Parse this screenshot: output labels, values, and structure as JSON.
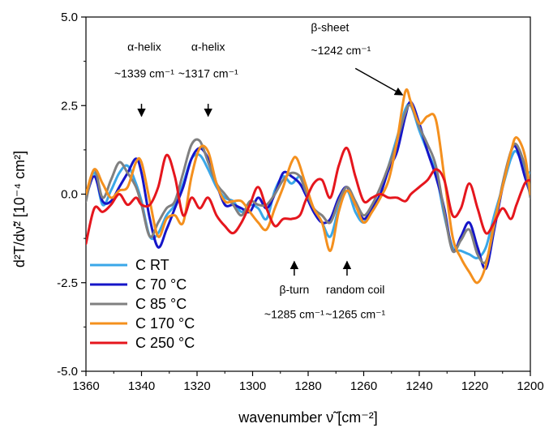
{
  "chart_data": {
    "type": "line",
    "xlabel": "wavenumber ν̃ [cm⁻²]",
    "ylabel": "d²T/dν̃² [10⁻⁴ cm²]",
    "xlim": [
      1360,
      1200
    ],
    "ylim": [
      -5.0,
      5.0
    ],
    "x_reversed": true,
    "x_ticks": [
      1360,
      1340,
      1320,
      1300,
      1280,
      1260,
      1240,
      1220,
      1200
    ],
    "y_ticks": [
      -5.0,
      -2.5,
      0.0,
      2.5,
      5.0
    ],
    "y_tick_labels": [
      "-5.0",
      "-2.5",
      "0.0",
      "2.5",
      "5.0"
    ],
    "grid": false,
    "legend_placement": "bottom-left",
    "series": [
      {
        "name": "C RT",
        "color": "#3aa7e8",
        "points": [
          [
            1360,
            -0.1
          ],
          [
            1357,
            0.6
          ],
          [
            1354,
            -0.3
          ],
          [
            1351,
            0.1
          ],
          [
            1348,
            0.6
          ],
          [
            1345,
            0.8
          ],
          [
            1342,
            0.3
          ],
          [
            1340,
            -0.2
          ],
          [
            1337,
            -1.2
          ],
          [
            1334,
            -1.1
          ],
          [
            1331,
            -0.6
          ],
          [
            1328,
            -0.3
          ],
          [
            1325,
            0.3
          ],
          [
            1322,
            1.0
          ],
          [
            1319,
            1.1
          ],
          [
            1316,
            0.7
          ],
          [
            1313,
            0.2
          ],
          [
            1310,
            -0.1
          ],
          [
            1307,
            -0.2
          ],
          [
            1304,
            -0.5
          ],
          [
            1301,
            -0.3
          ],
          [
            1298,
            -0.4
          ],
          [
            1295,
            -0.7
          ],
          [
            1292,
            0.1
          ],
          [
            1289,
            0.5
          ],
          [
            1286,
            0.3
          ],
          [
            1283,
            0.5
          ],
          [
            1281,
            0.2
          ],
          [
            1278,
            -0.4
          ],
          [
            1275,
            -0.8
          ],
          [
            1272,
            -1.2
          ],
          [
            1269,
            -0.4
          ],
          [
            1266,
            0.1
          ],
          [
            1263,
            -0.5
          ],
          [
            1260,
            -0.8
          ],
          [
            1257,
            -0.4
          ],
          [
            1254,
            0.0
          ],
          [
            1251,
            0.8
          ],
          [
            1248,
            1.6
          ],
          [
            1245,
            2.4
          ],
          [
            1243,
            2.5
          ],
          [
            1240,
            1.8
          ],
          [
            1237,
            1.2
          ],
          [
            1234,
            0.6
          ],
          [
            1231,
            -0.6
          ],
          [
            1228,
            -1.5
          ],
          [
            1225,
            -1.6
          ],
          [
            1222,
            -1.7
          ],
          [
            1219,
            -1.8
          ],
          [
            1216,
            -1.5
          ],
          [
            1213,
            -0.6
          ],
          [
            1210,
            0.2
          ],
          [
            1207,
            1.0
          ],
          [
            1205,
            1.2
          ],
          [
            1202,
            0.7
          ],
          [
            1200,
            0.6
          ]
        ]
      },
      {
        "name": "C 70 °C",
        "color": "#1515c8",
        "points": [
          [
            1360,
            -0.1
          ],
          [
            1357,
            0.5
          ],
          [
            1354,
            -0.2
          ],
          [
            1351,
            -0.2
          ],
          [
            1348,
            0.2
          ],
          [
            1345,
            0.6
          ],
          [
            1342,
            1.0
          ],
          [
            1340,
            0.6
          ],
          [
            1337,
            -0.7
          ],
          [
            1334,
            -1.5
          ],
          [
            1331,
            -1.0
          ],
          [
            1328,
            -0.4
          ],
          [
            1325,
            0.2
          ],
          [
            1322,
            1.0
          ],
          [
            1319,
            1.3
          ],
          [
            1316,
            1.0
          ],
          [
            1313,
            0.3
          ],
          [
            1310,
            -0.3
          ],
          [
            1307,
            -0.3
          ],
          [
            1304,
            -0.4
          ],
          [
            1301,
            -0.5
          ],
          [
            1298,
            -0.1
          ],
          [
            1295,
            -0.4
          ],
          [
            1292,
            0.0
          ],
          [
            1289,
            0.6
          ],
          [
            1286,
            0.5
          ],
          [
            1283,
            0.3
          ],
          [
            1281,
            0.0
          ],
          [
            1278,
            -0.5
          ],
          [
            1275,
            -0.8
          ],
          [
            1272,
            -0.7
          ],
          [
            1269,
            -0.1
          ],
          [
            1266,
            0.2
          ],
          [
            1263,
            -0.3
          ],
          [
            1260,
            -0.7
          ],
          [
            1257,
            -0.4
          ],
          [
            1254,
            0.0
          ],
          [
            1251,
            0.7
          ],
          [
            1248,
            1.2
          ],
          [
            1245,
            2.2
          ],
          [
            1243,
            2.6
          ],
          [
            1240,
            2.0
          ],
          [
            1237,
            1.2
          ],
          [
            1234,
            0.5
          ],
          [
            1231,
            -0.4
          ],
          [
            1228,
            -1.6
          ],
          [
            1225,
            -1.2
          ],
          [
            1222,
            -0.8
          ],
          [
            1219,
            -1.5
          ],
          [
            1216,
            -2.1
          ],
          [
            1213,
            -1.0
          ],
          [
            1210,
            0.2
          ],
          [
            1207,
            1.2
          ],
          [
            1205,
            1.3
          ],
          [
            1202,
            0.5
          ],
          [
            1200,
            0.0
          ]
        ]
      },
      {
        "name": "C 85 °C",
        "color": "#808080",
        "points": [
          [
            1360,
            -0.2
          ],
          [
            1357,
            0.7
          ],
          [
            1354,
            -0.1
          ],
          [
            1351,
            0.4
          ],
          [
            1348,
            0.9
          ],
          [
            1345,
            0.6
          ],
          [
            1342,
            0.2
          ],
          [
            1340,
            -0.3
          ],
          [
            1337,
            -1.2
          ],
          [
            1334,
            -0.8
          ],
          [
            1331,
            -0.4
          ],
          [
            1328,
            -0.2
          ],
          [
            1325,
            0.6
          ],
          [
            1322,
            1.4
          ],
          [
            1319,
            1.5
          ],
          [
            1316,
            0.9
          ],
          [
            1313,
            0.3
          ],
          [
            1310,
            0.0
          ],
          [
            1307,
            -0.3
          ],
          [
            1304,
            -0.6
          ],
          [
            1301,
            -0.2
          ],
          [
            1298,
            -0.3
          ],
          [
            1295,
            -0.3
          ],
          [
            1292,
            0.0
          ],
          [
            1289,
            0.4
          ],
          [
            1286,
            0.6
          ],
          [
            1283,
            0.5
          ],
          [
            1281,
            0.1
          ],
          [
            1278,
            -0.4
          ],
          [
            1275,
            -0.6
          ],
          [
            1272,
            -0.8
          ],
          [
            1269,
            -0.2
          ],
          [
            1266,
            0.2
          ],
          [
            1263,
            -0.2
          ],
          [
            1260,
            -0.6
          ],
          [
            1257,
            -0.3
          ],
          [
            1254,
            0.2
          ],
          [
            1251,
            0.8
          ],
          [
            1248,
            1.5
          ],
          [
            1245,
            2.3
          ],
          [
            1243,
            2.5
          ],
          [
            1240,
            1.9
          ],
          [
            1237,
            1.4
          ],
          [
            1234,
            0.8
          ],
          [
            1231,
            -0.5
          ],
          [
            1228,
            -1.6
          ],
          [
            1225,
            -1.3
          ],
          [
            1222,
            -1.0
          ],
          [
            1219,
            -1.7
          ],
          [
            1216,
            -1.9
          ],
          [
            1213,
            -0.9
          ],
          [
            1210,
            0.3
          ],
          [
            1207,
            1.2
          ],
          [
            1205,
            1.4
          ],
          [
            1202,
            0.8
          ],
          [
            1200,
            -0.1
          ]
        ]
      },
      {
        "name": "C 170 °C",
        "color": "#f4901e",
        "points": [
          [
            1360,
            0.0
          ],
          [
            1357,
            0.7
          ],
          [
            1354,
            0.3
          ],
          [
            1351,
            -0.1
          ],
          [
            1348,
            0.1
          ],
          [
            1345,
            0.2
          ],
          [
            1342,
            0.9
          ],
          [
            1340,
            0.9
          ],
          [
            1337,
            -0.2
          ],
          [
            1334,
            -1.2
          ],
          [
            1331,
            -0.7
          ],
          [
            1328,
            -0.6
          ],
          [
            1325,
            -0.8
          ],
          [
            1322,
            0.5
          ],
          [
            1319,
            1.3
          ],
          [
            1316,
            1.2
          ],
          [
            1313,
            0.3
          ],
          [
            1310,
            -0.2
          ],
          [
            1307,
            -0.2
          ],
          [
            1304,
            -0.2
          ],
          [
            1301,
            -0.5
          ],
          [
            1298,
            -0.8
          ],
          [
            1295,
            -1.0
          ],
          [
            1292,
            -0.4
          ],
          [
            1289,
            0.2
          ],
          [
            1286,
            0.9
          ],
          [
            1284,
            1.0
          ],
          [
            1281,
            0.3
          ],
          [
            1278,
            -0.4
          ],
          [
            1275,
            -0.8
          ],
          [
            1272,
            -1.6
          ],
          [
            1269,
            -0.5
          ],
          [
            1266,
            0.1
          ],
          [
            1263,
            -0.3
          ],
          [
            1260,
            -0.8
          ],
          [
            1257,
            -0.5
          ],
          [
            1254,
            -0.1
          ],
          [
            1251,
            0.4
          ],
          [
            1248,
            1.5
          ],
          [
            1245,
            2.9
          ],
          [
            1243,
            2.6
          ],
          [
            1240,
            2.0
          ],
          [
            1237,
            2.2
          ],
          [
            1234,
            2.1
          ],
          [
            1231,
            0.5
          ],
          [
            1228,
            -1.2
          ],
          [
            1225,
            -1.8
          ],
          [
            1222,
            -2.2
          ],
          [
            1219,
            -2.5
          ],
          [
            1216,
            -2.0
          ],
          [
            1213,
            -0.8
          ],
          [
            1210,
            0.2
          ],
          [
            1207,
            1.2
          ],
          [
            1205,
            1.6
          ],
          [
            1202,
            1.1
          ],
          [
            1200,
            0.0
          ]
        ]
      },
      {
        "name": "C 250 °C",
        "color": "#e5161d",
        "points": [
          [
            1360,
            -1.4
          ],
          [
            1357,
            -0.4
          ],
          [
            1354,
            -0.5
          ],
          [
            1351,
            -0.3
          ],
          [
            1348,
            0.0
          ],
          [
            1345,
            -0.3
          ],
          [
            1342,
            -0.1
          ],
          [
            1340,
            -0.3
          ],
          [
            1337,
            -0.3
          ],
          [
            1334,
            0.2
          ],
          [
            1331,
            1.1
          ],
          [
            1328,
            0.5
          ],
          [
            1325,
            -0.6
          ],
          [
            1322,
            -0.1
          ],
          [
            1319,
            -0.4
          ],
          [
            1316,
            -0.1
          ],
          [
            1313,
            -0.6
          ],
          [
            1310,
            -0.9
          ],
          [
            1307,
            -1.1
          ],
          [
            1304,
            -0.8
          ],
          [
            1301,
            -0.3
          ],
          [
            1298,
            0.2
          ],
          [
            1295,
            -0.4
          ],
          [
            1292,
            -0.9
          ],
          [
            1289,
            -0.7
          ],
          [
            1286,
            -0.7
          ],
          [
            1283,
            -0.6
          ],
          [
            1281,
            -0.2
          ],
          [
            1278,
            0.3
          ],
          [
            1275,
            0.4
          ],
          [
            1272,
            -0.1
          ],
          [
            1269,
            0.8
          ],
          [
            1266,
            1.3
          ],
          [
            1263,
            0.5
          ],
          [
            1260,
            -0.2
          ],
          [
            1257,
            -0.1
          ],
          [
            1254,
            0.0
          ],
          [
            1251,
            -0.1
          ],
          [
            1248,
            -0.1
          ],
          [
            1245,
            -0.2
          ],
          [
            1243,
            0.0
          ],
          [
            1240,
            0.2
          ],
          [
            1237,
            0.4
          ],
          [
            1234,
            0.7
          ],
          [
            1231,
            0.4
          ],
          [
            1228,
            -0.6
          ],
          [
            1225,
            -0.4
          ],
          [
            1222,
            0.3
          ],
          [
            1219,
            -0.4
          ],
          [
            1216,
            -1.1
          ],
          [
            1213,
            -0.8
          ],
          [
            1210,
            -0.4
          ],
          [
            1207,
            -0.7
          ],
          [
            1205,
            -0.3
          ],
          [
            1202,
            0.3
          ],
          [
            1200,
            0.4
          ]
        ]
      }
    ],
    "annotations": [
      {
        "lines": [
          "α-helix",
          "~1339 cm⁻¹"
        ],
        "arrow_x": 1340,
        "arrow_from_y": 2.55,
        "arrow_to_y": 2.2,
        "text_x": 1339,
        "text_line_y": [
          4.05,
          3.3
        ],
        "anchor": "middle",
        "direction": "down"
      },
      {
        "lines": [
          "α-helix",
          "~1317 cm⁻¹"
        ],
        "arrow_x": 1316,
        "arrow_from_y": 2.55,
        "arrow_to_y": 2.2,
        "text_x": 1316,
        "text_line_y": [
          4.05,
          3.3
        ],
        "anchor": "middle",
        "direction": "down"
      },
      {
        "lines": [
          "β-sheet",
          "~1242 cm⁻¹"
        ],
        "arrow_x0": 1263,
        "arrow_y0": 3.55,
        "arrow_x1": 1246,
        "arrow_y1": 2.8,
        "text_x": 1279,
        "text_line_y": [
          4.6,
          3.95
        ],
        "anchor": "start",
        "direction": "diag"
      },
      {
        "lines": [
          "β-turn",
          "~1285 cm⁻¹"
        ],
        "arrow_x": 1285,
        "arrow_from_y": -2.3,
        "arrow_to_y": -1.9,
        "text_x": 1285,
        "text_line_y": [
          -2.8,
          -3.5
        ],
        "anchor": "middle",
        "direction": "up"
      },
      {
        "lines": [
          "random coil",
          "~1265 cm⁻¹"
        ],
        "arrow_x": 1266,
        "arrow_from_y": -2.3,
        "arrow_to_y": -1.9,
        "text_x": 1263,
        "text_line_y": [
          -2.8,
          -3.5
        ],
        "anchor": "middle",
        "direction": "up"
      }
    ]
  }
}
